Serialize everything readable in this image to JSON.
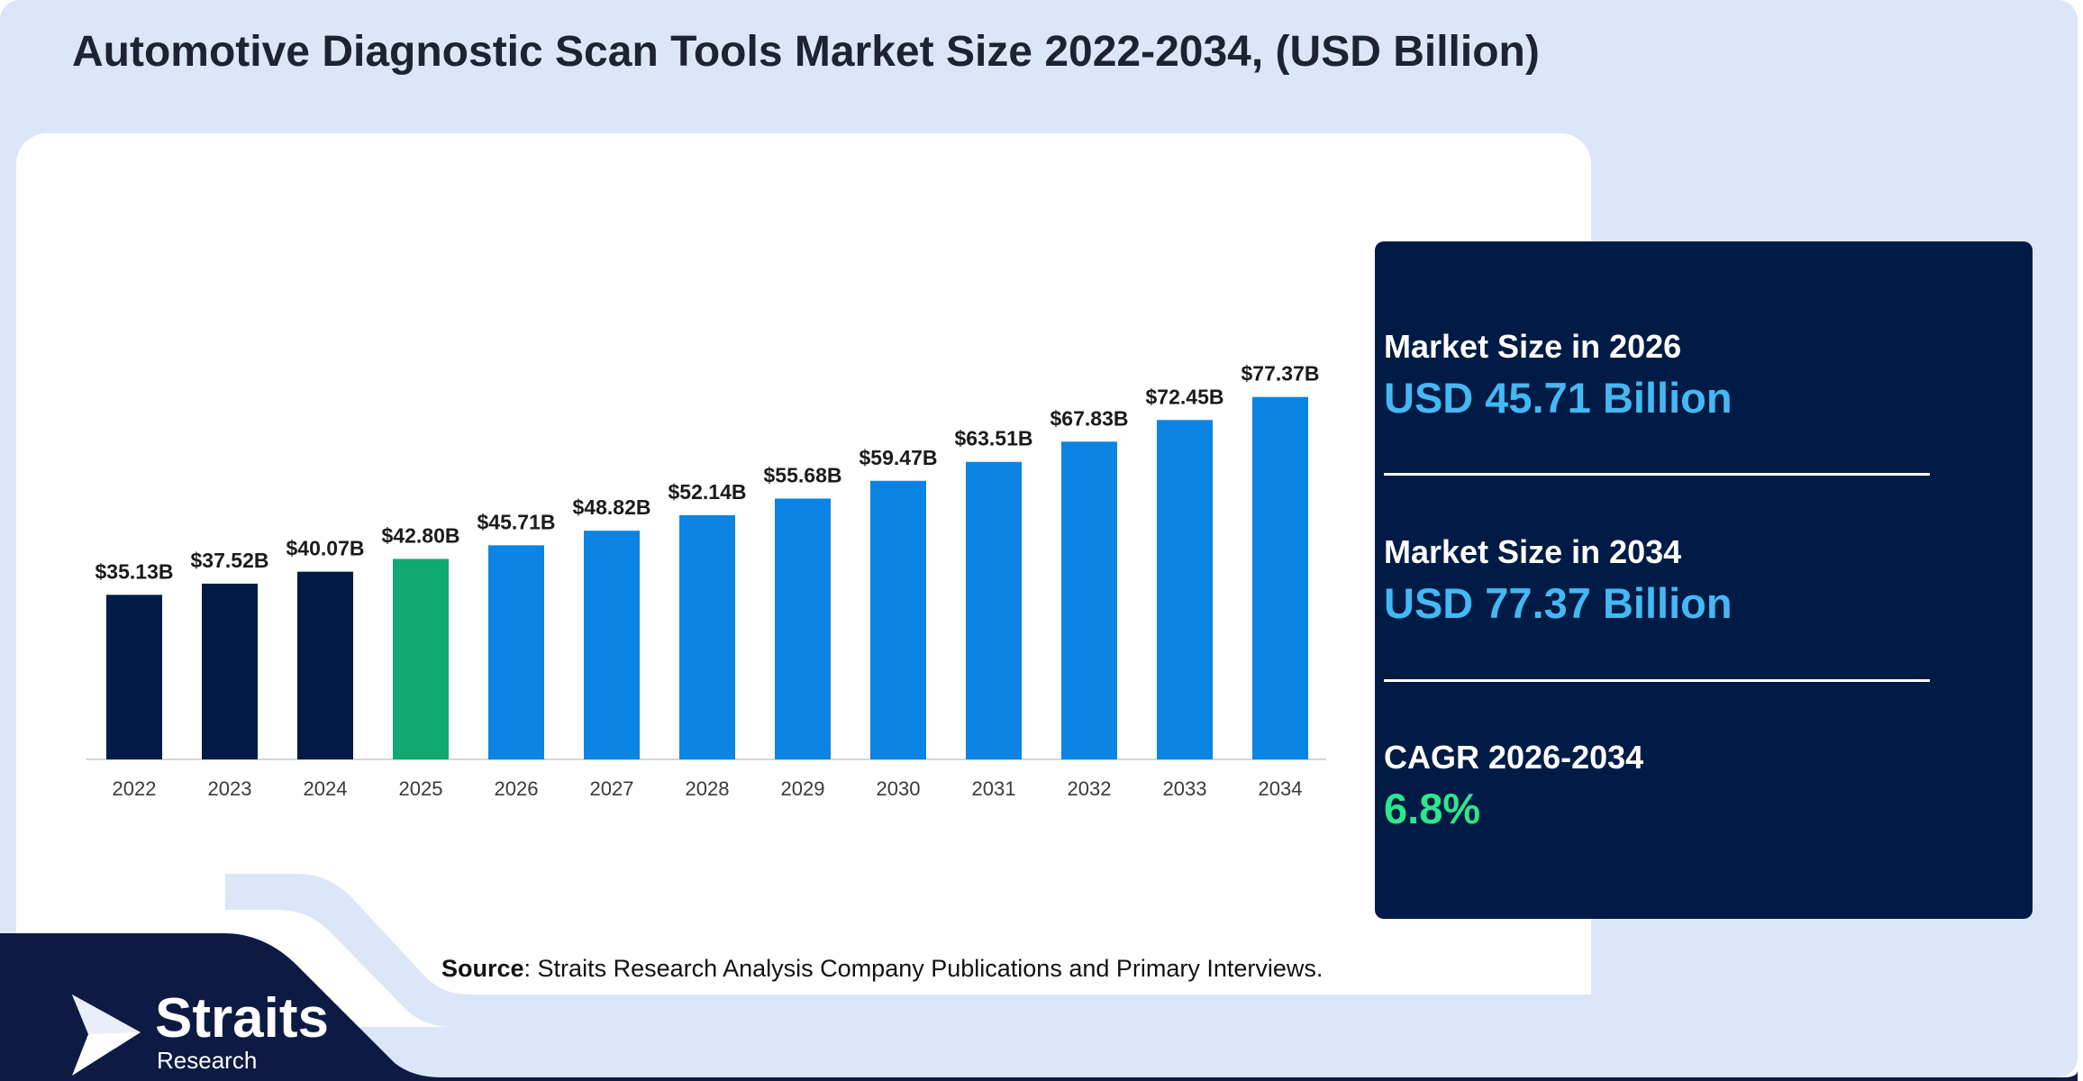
{
  "title": "Automotive Diagnostic Scan Tools Market Size 2022-2034, (USD Billion)",
  "colors": {
    "background": "#dbe7f9",
    "card": "#ffffff",
    "navy": "#0c1a44",
    "bar_historical": "#001b45",
    "bar_base_year": "#0fa971",
    "bar_forecast": "#0b84e3",
    "stat_value_blue": "#44b8f3",
    "stat_value_green": "#2ee68d"
  },
  "chart_data": {
    "type": "bar",
    "categories": [
      "2022",
      "2023",
      "2024",
      "2025",
      "2026",
      "2027",
      "2028",
      "2029",
      "2030",
      "2031",
      "2032",
      "2033",
      "2034"
    ],
    "values": [
      35.13,
      37.52,
      40.07,
      42.8,
      45.71,
      48.82,
      52.14,
      55.68,
      59.47,
      63.51,
      67.83,
      72.45,
      77.37
    ],
    "data_labels": [
      "$35.13B",
      "$37.52B",
      "$40.07B",
      "$42.80B",
      "$45.71B",
      "$48.82B",
      "$52.14B",
      "$55.68B",
      "$59.47B",
      "$63.51B",
      "$67.83B",
      "$72.45B",
      "$77.37B"
    ],
    "bar_color_groups": [
      "historical",
      "historical",
      "historical",
      "base",
      "forecast",
      "forecast",
      "forecast",
      "forecast",
      "forecast",
      "forecast",
      "forecast",
      "forecast",
      "forecast"
    ],
    "title": "Automotive Diagnostic Scan Tools Market Size 2022-2034, (USD Billion)",
    "xlabel": "",
    "ylabel": "",
    "grid": false
  },
  "stats": [
    {
      "label": "Market Size in 2026",
      "value": "USD 45.71 Billion",
      "color": "#44b8f3"
    },
    {
      "label": "Market Size in 2034",
      "value": "USD 77.37 Billion",
      "color": "#44b8f3"
    },
    {
      "label": "CAGR 2026-2034",
      "value": "6.8%",
      "color": "#2ee68d"
    }
  ],
  "source": {
    "prefix": "Source",
    "text": ": Straits Research Analysis Company Publications and Primary Interviews."
  },
  "logo": {
    "name": "Straits",
    "sub": "Research",
    "icon": "arrow-logo-icon"
  }
}
